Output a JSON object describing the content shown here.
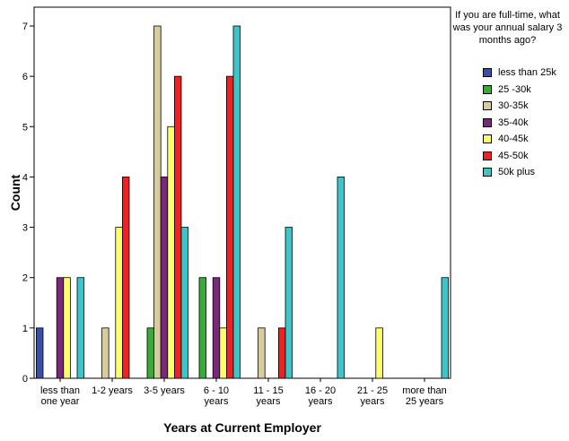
{
  "chart_data": {
    "type": "bar",
    "xlabel": "Years at Current Employer",
    "ylabel": "Count",
    "ylim": [
      0,
      7
    ],
    "yticks": [
      0,
      1,
      2,
      3,
      4,
      5,
      6,
      7
    ],
    "categories": [
      [
        "less than",
        "one year"
      ],
      [
        "1-2 years"
      ],
      [
        "3-5 years"
      ],
      [
        "6 - 10",
        "years"
      ],
      [
        "11 - 15",
        "years"
      ],
      [
        "16 - 20",
        "years"
      ],
      [
        "21 - 25",
        "years"
      ],
      [
        "more than",
        "25 years"
      ]
    ],
    "legend_title": "If you are full-time, what was your annual salary 3 months ago?",
    "legend_position": "right",
    "grid": false,
    "series": [
      {
        "name": "less than 25k",
        "color": "#3a4fa8",
        "values": [
          1,
          0,
          0,
          0,
          0,
          0,
          0,
          0
        ]
      },
      {
        "name": "25 -30k",
        "color": "#3aab3a",
        "values": [
          0,
          0,
          1,
          2,
          0,
          0,
          0,
          0
        ]
      },
      {
        "name": "30-35k",
        "color": "#d6cca0",
        "values": [
          0,
          1,
          7,
          0,
          1,
          0,
          0,
          0
        ]
      },
      {
        "name": "35-40k",
        "color": "#7a287a",
        "values": [
          2,
          0,
          4,
          2,
          0,
          0,
          0,
          0
        ]
      },
      {
        "name": "40-45k",
        "color": "#ffff66",
        "values": [
          2,
          3,
          5,
          1,
          0,
          0,
          1,
          0
        ]
      },
      {
        "name": "45-50k",
        "color": "#ee2222",
        "values": [
          0,
          4,
          6,
          6,
          1,
          0,
          0,
          0
        ]
      },
      {
        "name": "50k plus",
        "color": "#3fc4c8",
        "values": [
          2,
          0,
          3,
          7,
          3,
          4,
          0,
          2
        ]
      }
    ]
  }
}
